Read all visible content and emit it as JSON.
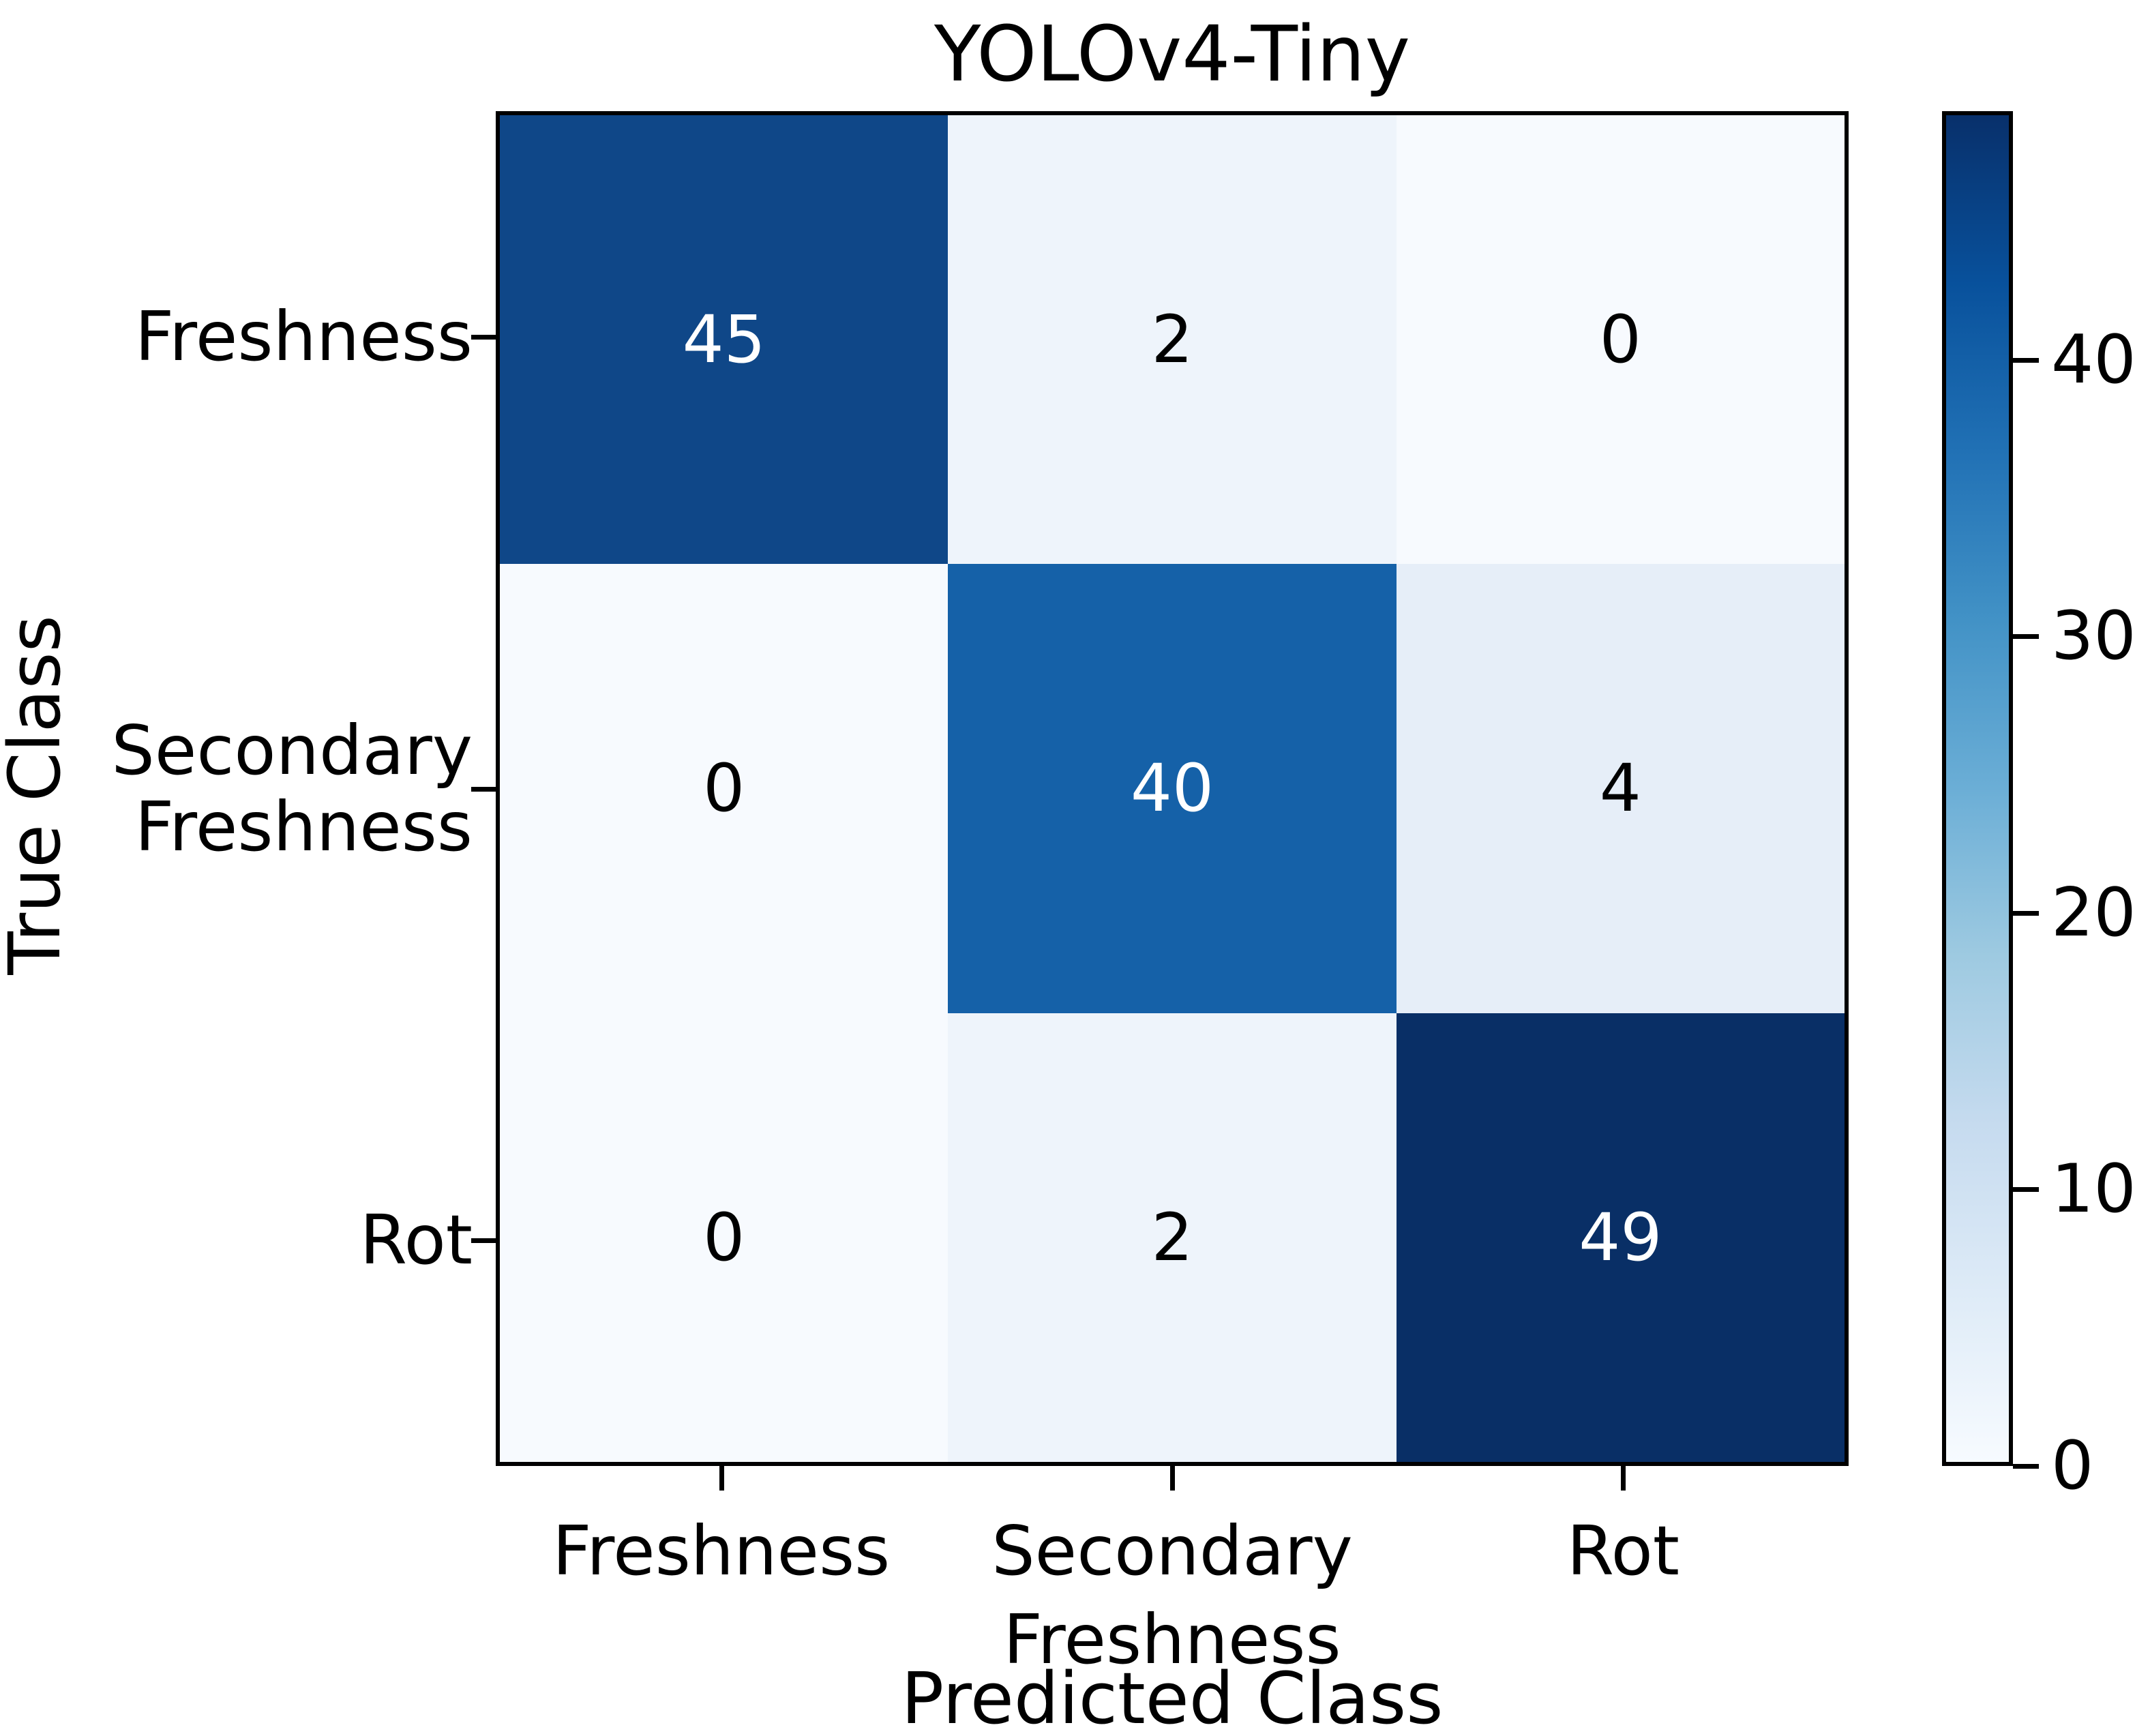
{
  "title": "YOLOv4-Tiny",
  "axes": {
    "x_label": "Predicted Class",
    "y_label": "True Class"
  },
  "chart_data": {
    "type": "heatmap",
    "title": "YOLOv4-Tiny",
    "xlabel": "Predicted Class",
    "ylabel": "True Class",
    "x_categories": [
      [
        "Freshness"
      ],
      [
        "Secondary",
        "Freshness"
      ],
      [
        "Rot"
      ]
    ],
    "y_categories": [
      [
        "Freshness"
      ],
      [
        "Secondary",
        "Freshness"
      ],
      [
        "Rot"
      ]
    ],
    "matrix": [
      [
        45,
        2,
        0
      ],
      [
        0,
        40,
        4
      ],
      [
        0,
        2,
        49
      ]
    ],
    "vmin": 0,
    "vmax": 49,
    "colormap": "Blues",
    "colorbar_ticks": [
      0,
      10,
      20,
      30,
      40
    ],
    "legend_position": "right-colorbar",
    "grid": false,
    "cell_colors": [
      [
        "#0f4788",
        "#eef4fb",
        "#f7fafe"
      ],
      [
        "#f7fafe",
        "#1561a8",
        "#e6eef8"
      ],
      [
        "#f7fafe",
        "#eef4fb",
        "#092f66"
      ]
    ],
    "cell_text_colors": [
      [
        "#ffffff",
        "#000000",
        "#000000"
      ],
      [
        "#000000",
        "#ffffff",
        "#000000"
      ],
      [
        "#000000",
        "#000000",
        "#ffffff"
      ]
    ],
    "colors": {
      "spine": "#000000",
      "background": "#ffffff",
      "cmap_low": "#f7fbff",
      "cmap_high": "#08306b"
    }
  }
}
